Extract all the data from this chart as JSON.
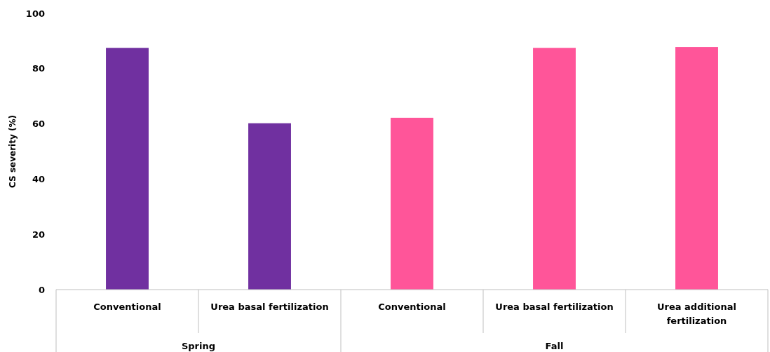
{
  "chart_data": {
    "type": "bar",
    "ylabel": "CS severity (%)",
    "categories": [
      "Conventional",
      "Urea basal fertilization",
      "Conventional",
      "Urea basal fertilization",
      "Urea additional fertilization"
    ],
    "values": [
      87.5,
      60.2,
      62.2,
      87.5,
      87.8
    ],
    "colors": [
      "#7030a0",
      "#7030a0",
      "#ff5599",
      "#ff5599",
      "#ff5599"
    ],
    "annotations": [
      "Spring",
      "Fall"
    ],
    "ylim": [
      0,
      100
    ],
    "yticks": [
      0,
      20,
      40,
      60,
      80,
      100
    ],
    "grid": false,
    "legend": false
  }
}
